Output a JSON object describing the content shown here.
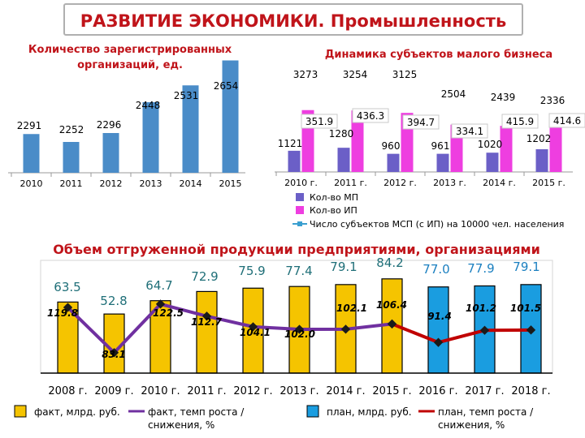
{
  "page": {
    "title": "РАЗВИТИЕ ЭКОНОМИКИ. Промышленность"
  },
  "chart_data": [
    {
      "type": "bar",
      "title": "Количество зарегистрированных организаций, ед.",
      "categories": [
        "2010",
        "2011",
        "2012",
        "2013",
        "2014",
        "2015"
      ],
      "values": [
        2291,
        2252,
        2296,
        2448,
        2531,
        2654
      ],
      "value_labels": [
        "2291",
        "2252",
        "2296",
        "2448",
        "2531",
        "2654"
      ],
      "color": "#4a8cc8"
    },
    {
      "type": "bar",
      "title": "Динамика субъектов малого бизнеса",
      "categories": [
        "2010 г.",
        "2011 г.",
        "2012 г.",
        "2013 г.",
        "2014 г.",
        "2015 г."
      ],
      "series": [
        {
          "name": "Кол-во МП",
          "values": [
            1121,
            1280,
            960,
            961,
            1020,
            1202
          ],
          "labels": [
            "1121",
            "1280",
            "960",
            "961",
            "1020",
            "1202"
          ],
          "color": "#6b5fc7"
        },
        {
          "name": "Кол-во ИП",
          "values": [
            3273,
            3254,
            3125,
            2504,
            2439,
            2336
          ],
          "labels": [
            "3273",
            "3254",
            "3125",
            "2504",
            "2439",
            "2336"
          ],
          "color": "#ee3ee0"
        },
        {
          "name": "Число субъектов МСП (с ИП) на 10000 чел. населения",
          "type": "line",
          "values": [
            351.9,
            436.3,
            394.7,
            334.1,
            415.9,
            414.6
          ],
          "labels": [
            "351.9",
            "436.3",
            "394.7",
            "334.1",
            "415.9",
            "414.6"
          ],
          "color": "#3a9fd0"
        }
      ]
    },
    {
      "type": "bar",
      "title": "Объем отгруженной продукции предприятиями, организациями",
      "categories": [
        "2008 г.",
        "2009 г.",
        "2010 г.",
        "2011 г.",
        "2012 г.",
        "2013 г.",
        "2014 г.",
        "2015 г.",
        "2016 г.",
        "2017 г.",
        "2018 г."
      ],
      "series": [
        {
          "name": "факт, млрд. руб.",
          "values": [
            63.5,
            52.8,
            64.7,
            72.9,
            75.9,
            77.4,
            79.1,
            84.2,
            null,
            null,
            null
          ],
          "color": "#f5c400"
        },
        {
          "name": "план, млрд. руб.",
          "values": [
            null,
            null,
            null,
            null,
            null,
            null,
            null,
            null,
            77.0,
            77.9,
            79.1
          ],
          "color": "#1a9de0"
        },
        {
          "name": "факт, темп роста / снижения, %",
          "type": "line",
          "values": [
            119.8,
            83.1,
            122.5,
            112.7,
            104.1,
            102.0,
            102.1,
            106.4,
            null,
            null,
            null
          ],
          "color": "#7030a0"
        },
        {
          "name": "план, темп роста / снижения, %",
          "type": "line",
          "values": [
            null,
            null,
            null,
            null,
            null,
            null,
            null,
            106.4,
            91.4,
            101.2,
            101.5
          ],
          "color": "#c00000"
        }
      ],
      "bar_labels": [
        "63.5",
        "52.8",
        "64.7",
        "72.9",
        "75.9",
        "77.4",
        "79.1",
        "84.2",
        "77.0",
        "77.9",
        "79.1"
      ],
      "bar_label_colors": [
        "#1f6f78",
        "#1f6f78",
        "#1f6f78",
        "#1f6f78",
        "#1f6f78",
        "#1f6f78",
        "#1f6f78",
        "#1f6f78",
        "#1a7fc0",
        "#1a7fc0",
        "#1a7fc0"
      ],
      "rate_labels": [
        "119.8",
        "83.1",
        "122.5",
        "112.7",
        "104.1",
        "102.0",
        "102.1",
        "106.4",
        "91.4",
        "101.2",
        "101.5"
      ],
      "legend": [
        "факт, млрд. руб.",
        "факт, темп роста / снижения, %",
        "план, млрд. руб.",
        "план, темп роста / снижения, %"
      ]
    }
  ]
}
